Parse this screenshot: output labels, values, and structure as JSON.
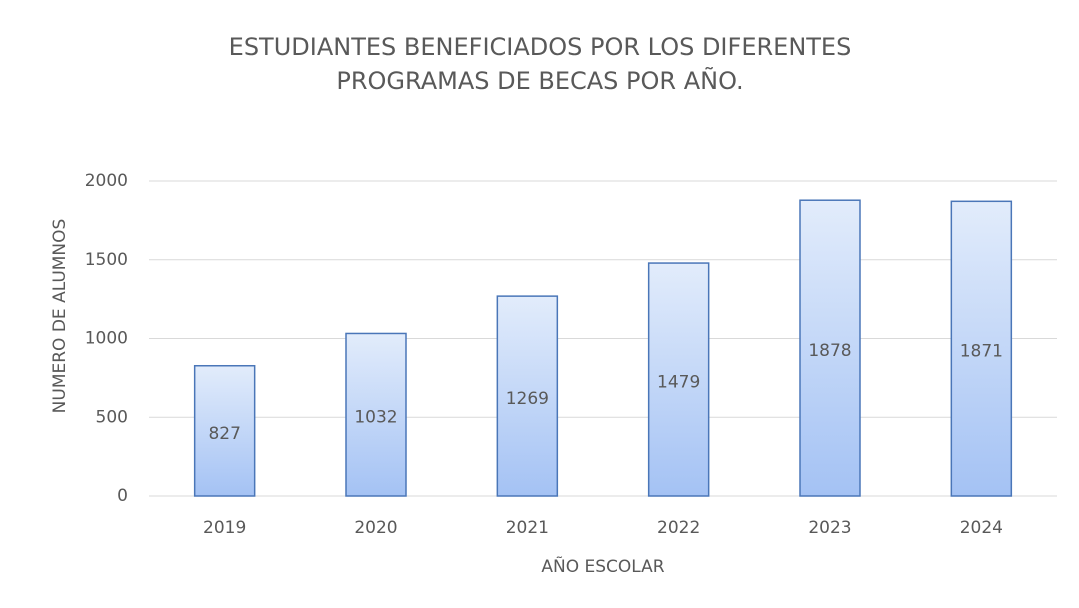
{
  "chart_data": {
    "type": "bar",
    "title": "ESTUDIANTES BENEFICIADOS POR LOS DIFERENTES PROGRAMAS DE BECAS POR AÑO.",
    "x_label": "AÑO ESCOLAR",
    "y_label": "NUMERO DE ALUMNOS",
    "categories": [
      "2019",
      "2020",
      "2021",
      "2022",
      "2023",
      "2024"
    ],
    "values": [
      827,
      1032,
      1269,
      1479,
      1878,
      1871
    ],
    "color": "#a4c2f4",
    "ylim": [
      0,
      2000
    ],
    "yticks": [
      0,
      500,
      1000,
      1500,
      2000
    ],
    "grid": true
  }
}
